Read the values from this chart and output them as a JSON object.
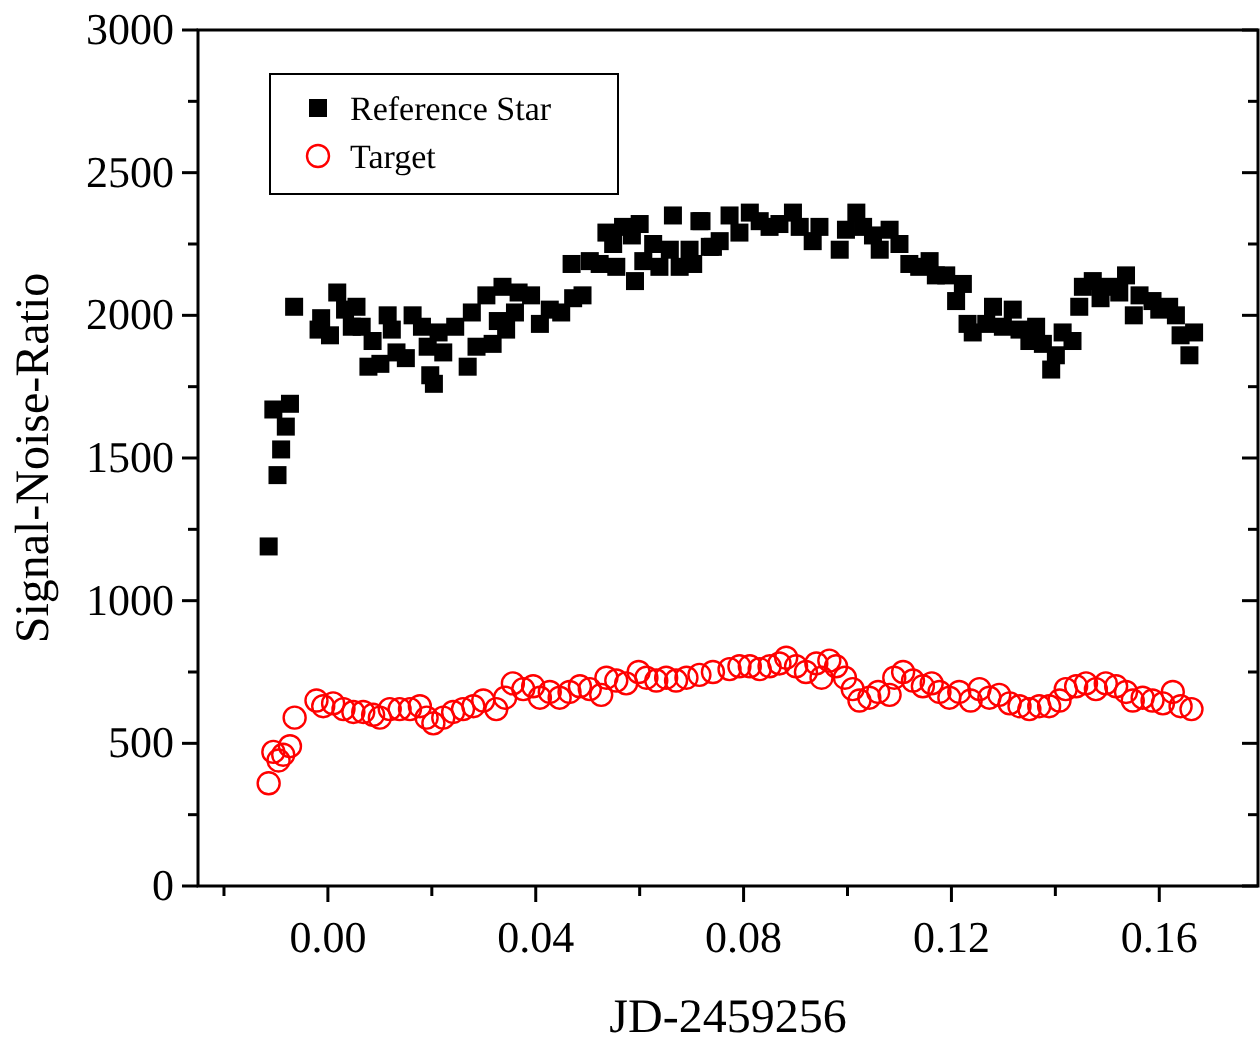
{
  "chart_data": {
    "type": "scatter",
    "xlabel": "JD-2459256",
    "ylabel": "Signal-Noise-Ratio",
    "xlim": [
      -0.025,
      0.179
    ],
    "ylim": [
      0,
      3000
    ],
    "xticks": [
      {
        "value": -0.02,
        "label": null
      },
      {
        "value": 0,
        "label": "0.00"
      },
      {
        "value": 0.02,
        "label": null
      },
      {
        "value": 0.04,
        "label": "0.04"
      },
      {
        "value": 0.06,
        "label": null
      },
      {
        "value": 0.08,
        "label": "0.08"
      },
      {
        "value": 0.1,
        "label": null
      },
      {
        "value": 0.12,
        "label": "0.12"
      },
      {
        "value": 0.14,
        "label": null
      },
      {
        "value": 0.16,
        "label": "0.16"
      }
    ],
    "yticks": [
      0,
      {
        "value": 250,
        "label": null
      },
      500,
      {
        "value": 750,
        "label": null
      },
      1000,
      {
        "value": 1250,
        "label": null
      },
      1500,
      {
        "value": 1750,
        "label": null
      },
      2000,
      {
        "value": 2250,
        "label": null
      },
      2500,
      {
        "value": 2750,
        "label": null
      },
      3000
    ],
    "grid": false,
    "legend": "top left",
    "series": [
      {
        "name": "Reference Star",
        "color": "#000000",
        "marker": "square",
        "x": [
          -0.0114,
          -0.0097,
          -0.009,
          -0.0081,
          -0.0105,
          -0.0073,
          -0.0065,
          -0.0013,
          -0.0018,
          0.0004,
          0.0018,
          0.0033,
          0.0055,
          0.0046,
          0.0065,
          0.0086,
          0.0078,
          0.0101,
          0.0115,
          0.0123,
          0.0132,
          0.015,
          0.0163,
          0.0181,
          0.0197,
          0.0204,
          0.0192,
          0.0222,
          0.0213,
          0.0245,
          0.0269,
          0.0277,
          0.0286,
          0.0305,
          0.0317,
          0.0327,
          0.0336,
          0.0343,
          0.036,
          0.0367,
          0.0391,
          0.0408,
          0.0427,
          0.0449,
          0.0472,
          0.049,
          0.0469,
          0.0504,
          0.0523,
          0.0536,
          0.0555,
          0.0549,
          0.0568,
          0.0585,
          0.0591,
          0.06,
          0.0607,
          0.0626,
          0.0638,
          0.0658,
          0.0664,
          0.0677,
          0.0696,
          0.0703,
          0.0715,
          0.0719,
          0.0735,
          0.0741,
          0.0754,
          0.0773,
          0.0792,
          0.0812,
          0.0831,
          0.085,
          0.0869,
          0.0895,
          0.0908,
          0.0933,
          0.0946,
          0.0985,
          0.0997,
          0.1017,
          0.103,
          0.1049,
          0.1062,
          0.1081,
          0.11,
          0.1119,
          0.1138,
          0.1158,
          0.117,
          0.119,
          0.1209,
          0.1222,
          0.1231,
          0.1241,
          0.1267,
          0.128,
          0.1299,
          0.1318,
          0.1331,
          0.135,
          0.1363,
          0.1376,
          0.1392,
          0.1401,
          0.1414,
          0.1433,
          0.1446,
          0.1453,
          0.1472,
          0.1487,
          0.1504,
          0.1523,
          0.1536,
          0.1551,
          0.1562,
          0.1587,
          0.16,
          0.1619,
          0.1632,
          0.1641,
          0.1658,
          0.1667
        ],
        "values": [
          1190,
          1440,
          1530,
          1610,
          1670,
          1690,
          2030,
          1990,
          1950,
          1930,
          2080,
          2020,
          2030,
          1960,
          1960,
          1910,
          1820,
          1830,
          2000,
          1950,
          1870,
          1850,
          2000,
          1960,
          1790,
          1760,
          1890,
          1870,
          1940,
          1960,
          1820,
          2010,
          1890,
          2070,
          1900,
          1980,
          2100,
          1950,
          2010,
          2080,
          2070,
          1970,
          2020,
          2010,
          2060,
          2070,
          2180,
          2190,
          2180,
          2290,
          2170,
          2250,
          2310,
          2280,
          2120,
          2320,
          2190,
          2250,
          2170,
          2230,
          2350,
          2170,
          2230,
          2180,
          2330,
          2330,
          2240,
          2240,
          2260,
          2350,
          2290,
          2360,
          2330,
          2310,
          2320,
          2360,
          2310,
          2260,
          2310,
          2230,
          2300,
          2360,
          2310,
          2280,
          2230,
          2300,
          2250,
          2180,
          2170,
          2190,
          2140,
          2140,
          2050,
          2110,
          1970,
          1940,
          1970,
          2030,
          1960,
          2020,
          1950,
          1910,
          1960,
          1900,
          1810,
          1860,
          1940,
          1910,
          2030,
          2100,
          2120,
          2060,
          2100,
          2080,
          2140,
          2000,
          2070,
          2050,
          2020,
          2030,
          2000,
          1930,
          1860,
          1940
        ]
      },
      {
        "name": "Target",
        "color": "#ff0000",
        "marker": "circle",
        "x": [
          -0.0114,
          -0.0105,
          -0.0095,
          -0.0086,
          -0.0073,
          -0.0064,
          -0.0022,
          -0.0009,
          0.001,
          0.003,
          0.0049,
          0.0068,
          0.0087,
          0.01,
          0.0119,
          0.0138,
          0.0158,
          0.0177,
          0.019,
          0.0203,
          0.0222,
          0.0241,
          0.026,
          0.028,
          0.0299,
          0.0324,
          0.0341,
          0.0356,
          0.0376,
          0.0395,
          0.0408,
          0.0427,
          0.0446,
          0.0465,
          0.0485,
          0.0504,
          0.0526,
          0.0536,
          0.0555,
          0.0574,
          0.0598,
          0.0613,
          0.0632,
          0.0651,
          0.067,
          0.069,
          0.0715,
          0.0741,
          0.0773,
          0.0792,
          0.0812,
          0.0831,
          0.085,
          0.0869,
          0.0882,
          0.0901,
          0.092,
          0.094,
          0.095,
          0.0965,
          0.0978,
          0.0995,
          0.101,
          0.1023,
          0.1042,
          0.1059,
          0.1081,
          0.109,
          0.1107,
          0.1126,
          0.1145,
          0.1162,
          0.1177,
          0.1196,
          0.1215,
          0.1237,
          0.1254,
          0.1273,
          0.1292,
          0.1312,
          0.1331,
          0.135,
          0.1369,
          0.1388,
          0.1408,
          0.142,
          0.144,
          0.1459,
          0.1478,
          0.1497,
          0.1517,
          0.1536,
          0.1549,
          0.1568,
          0.1587,
          0.1607,
          0.1626,
          0.1641,
          0.1662
        ],
        "values": [
          360,
          470,
          440,
          460,
          490,
          590,
          650,
          630,
          640,
          620,
          610,
          610,
          600,
          590,
          620,
          620,
          620,
          630,
          590,
          570,
          590,
          610,
          620,
          630,
          650,
          620,
          660,
          710,
          690,
          700,
          660,
          680,
          660,
          680,
          700,
          690,
          670,
          730,
          720,
          710,
          750,
          730,
          720,
          730,
          720,
          730,
          740,
          750,
          760,
          770,
          770,
          760,
          770,
          780,
          800,
          770,
          750,
          780,
          730,
          790,
          770,
          730,
          690,
          650,
          660,
          680,
          670,
          730,
          750,
          720,
          700,
          710,
          680,
          660,
          680,
          650,
          690,
          660,
          670,
          640,
          630,
          620,
          630,
          630,
          650,
          690,
          700,
          710,
          690,
          710,
          700,
          680,
          650,
          660,
          650,
          640,
          680,
          630,
          620
        ]
      }
    ]
  }
}
